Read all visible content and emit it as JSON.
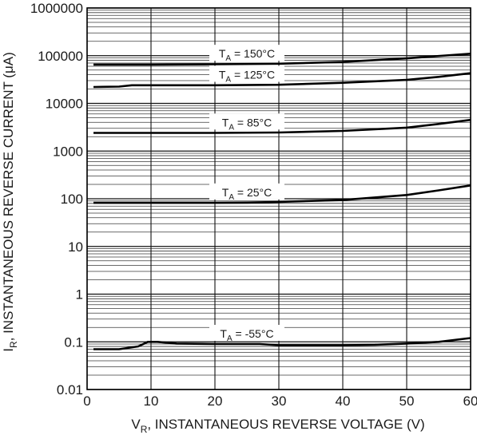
{
  "chart_data": {
    "type": "line",
    "xlabel": "V",
    "xlabel_sub": "R",
    "xlabel_rest": ", INSTANTANEOUS REVERSE VOLTAGE (V)",
    "ylabel": "I",
    "ylabel_sub": "R",
    "ylabel_rest": ", INSTANTANEOUS REVERSE CURRENT (μA)",
    "xlim": [
      0,
      60
    ],
    "ylim": [
      0.01,
      1000000
    ],
    "yscale": "log",
    "grid": true,
    "x_ticks": [
      "0",
      "10",
      "20",
      "30",
      "40",
      "50",
      "60"
    ],
    "y_ticks": [
      "0.01",
      "0.1",
      "1",
      "10",
      "100",
      "1000",
      "10000",
      "100000",
      "1000000"
    ],
    "series": [
      {
        "name": "T_A = 150°C",
        "label_main": "T",
        "label_sub": "A",
        "label_rest": " = 150°C",
        "x": [
          1,
          5,
          10,
          20,
          30,
          40,
          50,
          60
        ],
        "y": [
          65000,
          65000,
          65000,
          66000,
          68000,
          74000,
          88000,
          110000
        ]
      },
      {
        "name": "T_A = 125°C",
        "label_main": "T",
        "label_sub": "A",
        "label_rest": " = 125°C",
        "x": [
          1,
          5,
          7,
          10,
          20,
          30,
          40,
          50,
          55,
          60
        ],
        "y": [
          22000,
          22500,
          24000,
          24000,
          24000,
          24500,
          27000,
          31000,
          36000,
          43000
        ]
      },
      {
        "name": "T_A = 85°C",
        "label_main": "T",
        "label_sub": "A",
        "label_rest": " = 85°C",
        "x": [
          1,
          10,
          20,
          30,
          40,
          50,
          55,
          60
        ],
        "y": [
          2400,
          2400,
          2400,
          2450,
          2650,
          3100,
          3700,
          4500
        ]
      },
      {
        "name": "T_A = 25°C",
        "label_main": "T",
        "label_sub": "A",
        "label_rest": " = 25°C",
        "x": [
          1,
          10,
          20,
          25,
          30,
          40,
          50,
          55,
          60
        ],
        "y": [
          82,
          82,
          82,
          83,
          86,
          94,
          120,
          150,
          190
        ]
      },
      {
        "name": "T_A = -55°C",
        "label_main": "T",
        "label_sub": "A",
        "label_rest": " = -55°C",
        "x": [
          1,
          5,
          8,
          9.5,
          11,
          14,
          20,
          27,
          30,
          40,
          45,
          50,
          55,
          60
        ],
        "y": [
          0.07,
          0.07,
          0.08,
          0.1,
          0.1,
          0.092,
          0.09,
          0.09,
          0.085,
          0.085,
          0.087,
          0.092,
          0.1,
          0.12
        ]
      }
    ]
  }
}
